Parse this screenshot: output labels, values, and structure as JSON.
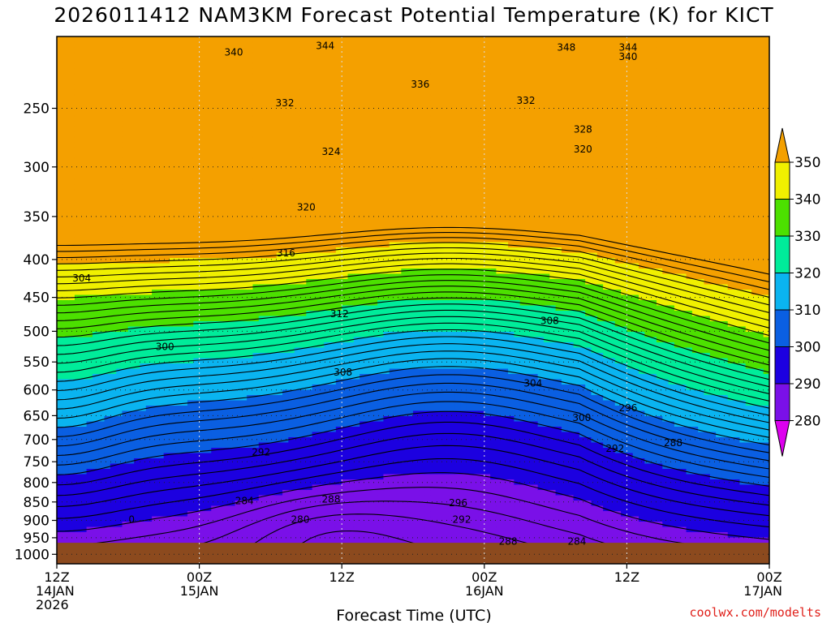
{
  "chart_data": {
    "type": "heatmap",
    "title": "2026011412 NAM3KM Forecast Potential Temperature (K) for KICT",
    "xlabel": "Forecast Time (UTC)",
    "ylabel": "",
    "x_range_hours": [
      0,
      60
    ],
    "x_ticks": [
      {
        "hour": 0,
        "lines": [
          "12Z",
          "14JAN",
          "2026"
        ]
      },
      {
        "hour": 12,
        "lines": [
          "00Z",
          "15JAN"
        ]
      },
      {
        "hour": 24,
        "lines": [
          "12Z"
        ]
      },
      {
        "hour": 36,
        "lines": [
          "00Z",
          "16JAN"
        ]
      },
      {
        "hour": 48,
        "lines": [
          "12Z"
        ]
      },
      {
        "hour": 60,
        "lines": [
          "00Z",
          "17JAN"
        ]
      }
    ],
    "y_scale": "log",
    "y_range_hpa": [
      1030,
      200
    ],
    "y_ticks": [
      250,
      300,
      350,
      400,
      450,
      500,
      550,
      600,
      650,
      700,
      750,
      800,
      850,
      900,
      950,
      1000
    ],
    "grid": true,
    "contour_interval_k": 2,
    "legend": {
      "placement": "right",
      "levels": [
        280,
        290,
        300,
        310,
        320,
        330,
        340,
        350
      ],
      "colors": [
        "#dd00ee",
        "#7a10e8",
        "#1c00e0",
        "#0a5fe2",
        "#0ab4f0",
        "#00ec9a",
        "#4ce000",
        "#f0f000",
        "#f4a000"
      ]
    },
    "terrain_color": "#8c4a1e",
    "contour_labels": [
      {
        "hour": 14.9,
        "p": 210,
        "value": "340"
      },
      {
        "hour": 22.6,
        "p": 206,
        "value": "344"
      },
      {
        "hour": 42.9,
        "p": 207,
        "value": "348"
      },
      {
        "hour": 48.1,
        "p": 207,
        "value": "344"
      },
      {
        "hour": 48.1,
        "p": 213,
        "value": "340"
      },
      {
        "hour": 30.6,
        "p": 232,
        "value": "336"
      },
      {
        "hour": 19.2,
        "p": 246,
        "value": "332"
      },
      {
        "hour": 39.5,
        "p": 244,
        "value": "332"
      },
      {
        "hour": 44.3,
        "p": 267,
        "value": "328"
      },
      {
        "hour": 23.1,
        "p": 286,
        "value": "324"
      },
      {
        "hour": 44.3,
        "p": 284,
        "value": "320"
      },
      {
        "hour": 21.0,
        "p": 340,
        "value": "320"
      },
      {
        "hour": 19.3,
        "p": 392,
        "value": "316"
      },
      {
        "hour": 2.1,
        "p": 424,
        "value": "304"
      },
      {
        "hour": 23.8,
        "p": 474,
        "value": "312"
      },
      {
        "hour": 41.5,
        "p": 484,
        "value": "308"
      },
      {
        "hour": 9.1,
        "p": 525,
        "value": "300"
      },
      {
        "hour": 24.1,
        "p": 568,
        "value": "308"
      },
      {
        "hour": 40.1,
        "p": 588,
        "value": "304"
      },
      {
        "hour": 44.2,
        "p": 654,
        "value": "300"
      },
      {
        "hour": 48.1,
        "p": 635,
        "value": "296"
      },
      {
        "hour": 51.9,
        "p": 707,
        "value": "288"
      },
      {
        "hour": 47.0,
        "p": 720,
        "value": "292"
      },
      {
        "hour": 17.2,
        "p": 728,
        "value": "292"
      },
      {
        "hour": 15.8,
        "p": 847,
        "value": "284"
      },
      {
        "hour": 23.1,
        "p": 843,
        "value": "288"
      },
      {
        "hour": 6.3,
        "p": 898,
        "value": "0"
      },
      {
        "hour": 20.5,
        "p": 898,
        "value": "280"
      },
      {
        "hour": 33.8,
        "p": 852,
        "value": "296"
      },
      {
        "hour": 34.1,
        "p": 898,
        "value": "292"
      },
      {
        "hour": 38.0,
        "p": 961,
        "value": "288"
      },
      {
        "hour": 43.8,
        "p": 961,
        "value": "284"
      }
    ]
  },
  "credit": "coolwx.com/modelts"
}
